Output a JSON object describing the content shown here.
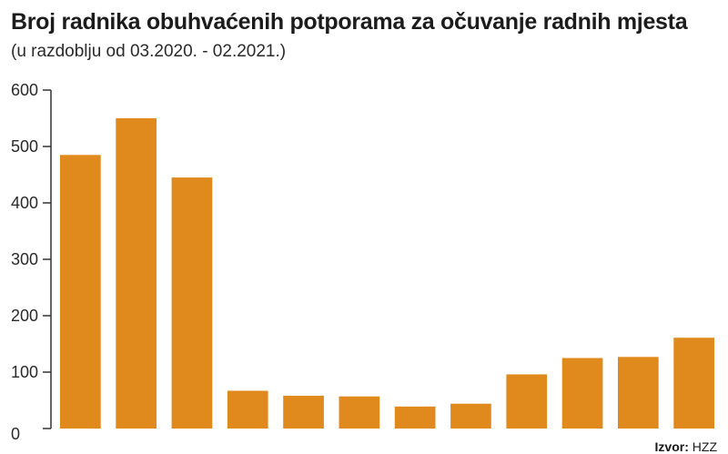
{
  "header": {
    "title": "Broj radnika obuhvaćenih potporama za očuvanje radnih mjesta",
    "subtitle": "(u razdoblju od 03.2020. - 02.2021.)"
  },
  "source": {
    "label": "Izvor:",
    "value": "HZZ"
  },
  "colors": {
    "bar": "#e08a1e",
    "axis": "#333333"
  },
  "chart_data": {
    "type": "bar",
    "title": "Broj radnika obuhvaćenih potporama za očuvanje radnih mjesta",
    "subtitle": "(u razdoblju od 03.2020. - 02.2021.)",
    "xlabel": "",
    "ylabel": "",
    "ylim": [
      0,
      600
    ],
    "yticks": [
      0,
      100,
      200,
      300,
      400,
      500,
      600
    ],
    "categories": [
      "",
      "",
      "",
      "",
      "",
      "",
      "",
      "",
      "",
      "",
      "",
      ""
    ],
    "values": [
      485,
      550,
      445,
      67,
      58,
      57,
      39,
      44,
      96,
      125,
      127,
      161
    ],
    "grid": false,
    "legend": "none"
  }
}
